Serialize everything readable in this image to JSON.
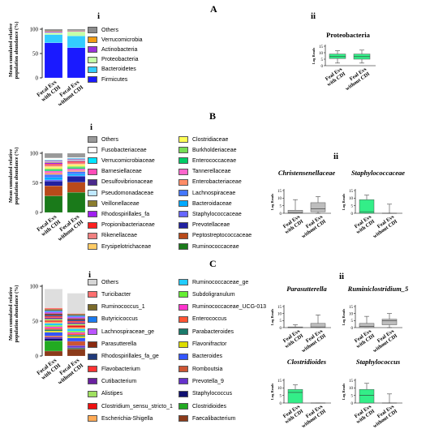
{
  "panels": {
    "A": {
      "letter": "A",
      "i_label": "i",
      "ii_label": "ii",
      "ylabel_lines": [
        "Mean cumulated relative",
        "population abundance (%)"
      ],
      "chart_title_ii": "Proteobacteria"
    },
    "B": {
      "letter": "B",
      "i_label": "i",
      "ii_label": "ii",
      "ylabel_lines": [
        "Mean cumulated relative",
        "population abundance (%)"
      ]
    },
    "C": {
      "letter": "C",
      "i_label": "i",
      "ii_label": "ii",
      "ylabel_lines": [
        "Mean cumulated relative",
        "population abundance (%)"
      ]
    }
  },
  "chart_data": [
    {
      "id": "A-i",
      "type": "bar",
      "stacked": true,
      "categories": [
        "Fecal Evs with CDI",
        "Fecal Evs without CDI"
      ],
      "ylim": [
        0,
        100
      ],
      "yticks": [
        0,
        50,
        100
      ],
      "legend": [
        "Others",
        "Verrucomicrobia",
        "Actinobacteria",
        "Proteobacteria",
        "Bacteroidetes",
        "Firmicutes"
      ],
      "colors": [
        "#8c8c8c",
        "#f39c12",
        "#9b30d9",
        "#c5ffa8",
        "#33ccff",
        "#1a1aff"
      ],
      "series": [
        {
          "name": "Firmicutes",
          "values": [
            72,
            62
          ]
        },
        {
          "name": "Bacteroidetes",
          "values": [
            17,
            24
          ]
        },
        {
          "name": "Proteobacteria",
          "values": [
            4,
            9
          ]
        },
        {
          "name": "Actinobacteria",
          "values": [
            2,
            1
          ]
        },
        {
          "name": "Verrucomicrobia",
          "values": [
            1,
            1
          ]
        },
        {
          "name": "Others",
          "values": [
            4,
            3
          ]
        }
      ]
    },
    {
      "id": "A-ii",
      "type": "box",
      "title": "Proteobacteria",
      "ylabel": "Log Reads",
      "ylim": [
        0,
        15
      ],
      "yticks": [
        0,
        5,
        10,
        15
      ],
      "categories": [
        "Feal Evs with CDI",
        "Feal Evs without CDI"
      ],
      "color": "#33ee88",
      "boxes": [
        {
          "min": 2,
          "q1": 5.5,
          "median": 7,
          "q3": 9,
          "max": 11.5
        },
        {
          "min": 2,
          "q1": 5,
          "median": 7,
          "q3": 9,
          "max": 12
        }
      ]
    },
    {
      "id": "B-i",
      "type": "bar",
      "stacked": true,
      "categories": [
        "Fecal Evs with CDI",
        "Fecal Evs without CDI"
      ],
      "ylim": [
        0,
        100
      ],
      "yticks": [
        0,
        50,
        100
      ],
      "legend": [
        "Others",
        "Fusobacteriaceae",
        "Verrucomicrobiaceae",
        "Barnesiellaceae",
        "Desulfovibrionaceae",
        "Pseudomonadaceae",
        "Veillonellaceae",
        "Rhodospirillales_fa",
        "Propionibacteriaceae",
        "Rikenellaceae",
        "Erysipelotrichaceae",
        "Clostridiaceae",
        "Burkholderiaceae",
        "Enterococcaceae",
        "Tannerellaceae",
        "Enterobacteriaceae",
        "Lachnospiraceae",
        "Bacteroidaceae",
        "Staphylococcaceae",
        "Prevotellaceae",
        "Peptostreptococcaceae",
        "Ruminococcaceae"
      ],
      "colors": [
        "#999999",
        "#ffffff",
        "#00e5ff",
        "#ff4db8",
        "#4b2a8c",
        "#bfe8ff",
        "#8b7d2e",
        "#a020f0",
        "#ff2020",
        "#f08080",
        "#ffcc66",
        "#ffff55",
        "#77dd55",
        "#00cc66",
        "#ff66cc",
        "#ff8c66",
        "#4477ff",
        "#00aaff",
        "#6666ff",
        "#2020a0",
        "#b84a1a",
        "#1a7a1a"
      ],
      "series": [
        {
          "name": "Ruminococcaceae",
          "values": [
            28,
            34
          ]
        },
        {
          "name": "Peptostreptococcaceae",
          "values": [
            17,
            17
          ]
        },
        {
          "name": "Prevotellaceae",
          "values": [
            8,
            10
          ]
        },
        {
          "name": "Staphylococcaceae",
          "values": [
            2,
            1
          ]
        },
        {
          "name": "Bacteroidaceae",
          "values": [
            4,
            3
          ]
        },
        {
          "name": "Lachnospiraceae",
          "values": [
            5,
            4
          ]
        },
        {
          "name": "Enterobacteriaceae",
          "values": [
            3,
            2
          ]
        },
        {
          "name": "Tannerellaceae",
          "values": [
            3,
            3
          ]
        },
        {
          "name": "Enterococcaceae",
          "values": [
            2,
            2
          ]
        },
        {
          "name": "Burkholderiaceae",
          "values": [
            2,
            2
          ]
        },
        {
          "name": "Clostridiaceae",
          "values": [
            2,
            2
          ]
        },
        {
          "name": "Erysipelotrichaceae",
          "values": [
            2,
            2
          ]
        },
        {
          "name": "Rikenellaceae",
          "values": [
            2,
            2
          ]
        },
        {
          "name": "Propionibacteriaceae",
          "values": [
            2,
            2
          ]
        },
        {
          "name": "Rhodospirillales_fa",
          "values": [
            2,
            1
          ]
        },
        {
          "name": "Veillonellaceae",
          "values": [
            1,
            1
          ]
        },
        {
          "name": "Pseudomonadaceae",
          "values": [
            1,
            1
          ]
        },
        {
          "name": "Desulfovibrionaceae",
          "values": [
            1,
            1
          ]
        },
        {
          "name": "Barnesiellaceae",
          "values": [
            1,
            1
          ]
        },
        {
          "name": "Verrucomicrobiaceae",
          "values": [
            1,
            1
          ]
        },
        {
          "name": "Fusobacteriaceae",
          "values": [
            3,
            1
          ]
        },
        {
          "name": "Others",
          "values": [
            8,
            7
          ]
        }
      ]
    },
    {
      "id": "B-ii-1",
      "type": "box",
      "title": "Christensenellaceae",
      "ylabel": "Log Reads",
      "ylim": [
        0,
        15
      ],
      "yticks": [
        0,
        5,
        10,
        15
      ],
      "categories": [
        "Feal Evs with CDI",
        "Feal Evs without CDI"
      ],
      "color": "#bdbdbd",
      "boxes": [
        {
          "min": 0,
          "q1": 0,
          "median": 0.5,
          "q3": 2,
          "max": 9
        },
        {
          "min": 0,
          "q1": 1,
          "median": 3,
          "q3": 7,
          "max": 11
        }
      ]
    },
    {
      "id": "B-ii-2",
      "type": "box",
      "title": "Staphylococcaceae",
      "ylabel": "Log Reads",
      "ylim": [
        0,
        15
      ],
      "yticks": [
        0,
        5,
        10,
        15
      ],
      "categories": [
        "Feal Evs with CDI",
        "Feal Evs without CDI"
      ],
      "color": "#33ee88",
      "boxes": [
        {
          "min": 0,
          "q1": 0,
          "median": 1,
          "q3": 9,
          "max": 12
        },
        {
          "min": 0,
          "q1": 0,
          "median": 0,
          "q3": 0,
          "max": 6
        }
      ]
    },
    {
      "id": "C-i",
      "type": "bar",
      "stacked": true,
      "categories": [
        "Fecal Evs with CDI",
        "Fecal Evs without CDI"
      ],
      "ylim": [
        0,
        100
      ],
      "yticks": [
        0,
        50,
        100
      ],
      "legend": [
        "Others",
        "Turicibacter",
        "Ruminococcus_1",
        "Butyricicoccus",
        "Lachnospiraceae_ge",
        "Parasutterella",
        "Rhodospirillales_fa_ge",
        "Flavobacterium",
        "Cutibacterium",
        "Alistipes",
        "Clostridium_sensu_stricto_1",
        "Escherichia-Shigella",
        "Ruminococcaceae_ge",
        "Subdoligranulum",
        "Ruminococcaceae_UCG-013",
        "Enterococcus",
        "Parabacteroides",
        "Flavonifractor",
        "Bacteroides",
        "Romboutsia",
        "Prevotella_9",
        "Staphylococcus",
        "Clostridioides",
        "Faecalibacterium"
      ],
      "colors": [
        "#d6d6d6",
        "#ff7070",
        "#7a6a2a",
        "#1a7af0",
        "#bb55ff",
        "#8b2a10",
        "#203a7a",
        "#ff3333",
        "#6a22a0",
        "#a0e060",
        "#ee1111",
        "#ffaa55",
        "#22ccff",
        "#66ee33",
        "#ff33cc",
        "#ff5533",
        "#1a7a6a",
        "#dddd00",
        "#3355ff",
        "#cc5533",
        "#6633cc",
        "#101070",
        "#22aa22",
        "#8b3a1a"
      ],
      "series": [
        {
          "name": "Faecalibacterium",
          "values": [
            7,
            10
          ]
        },
        {
          "name": "Clostridioides",
          "values": [
            15,
            1
          ]
        },
        {
          "name": "Staphylococcus",
          "values": [
            3,
            1
          ]
        },
        {
          "name": "Prevotella_9",
          "values": [
            2,
            3
          ]
        },
        {
          "name": "Romboutsia",
          "values": [
            2,
            6
          ]
        },
        {
          "name": "Bacteroides",
          "values": [
            5,
            5
          ]
        },
        {
          "name": "Flavonifractor",
          "values": [
            2,
            2
          ]
        },
        {
          "name": "Parabacteroides",
          "values": [
            2,
            2
          ]
        },
        {
          "name": "Enterococcus",
          "values": [
            2,
            2
          ]
        },
        {
          "name": "Ruminococcaceae_UCG-013",
          "values": [
            2,
            2
          ]
        },
        {
          "name": "Subdoligranulum",
          "values": [
            2,
            2
          ]
        },
        {
          "name": "Ruminococcaceae_ge",
          "values": [
            3,
            3
          ]
        },
        {
          "name": "Escherichia-Shigella",
          "values": [
            2,
            2
          ]
        },
        {
          "name": "Clostridium_sensu_stricto_1",
          "values": [
            2,
            3
          ]
        },
        {
          "name": "Alistipes",
          "values": [
            2,
            2
          ]
        },
        {
          "name": "Cutibacterium",
          "values": [
            2,
            2
          ]
        },
        {
          "name": "Flavobacterium",
          "values": [
            2,
            2
          ]
        },
        {
          "name": "Rhodospirillales_fa_ge",
          "values": [
            2,
            2
          ]
        },
        {
          "name": "Parasutterella",
          "values": [
            2,
            2
          ]
        },
        {
          "name": "Lachnospiraceae_ge",
          "values": [
            2,
            2
          ]
        },
        {
          "name": "Butyricicoccus",
          "values": [
            2,
            2
          ]
        },
        {
          "name": "Ruminococcus_1",
          "values": [
            2,
            2
          ]
        },
        {
          "name": "Turicibacter",
          "values": [
            2,
            1
          ]
        },
        {
          "name": "Others",
          "values": [
            27,
            29
          ]
        }
      ]
    },
    {
      "id": "C-ii-1",
      "type": "box",
      "title": "Parasutterella",
      "ylabel": "Log Reads",
      "ylim": [
        0,
        15
      ],
      "yticks": [
        0,
        5,
        10,
        15
      ],
      "categories": [
        "Feal Evs with CDI",
        "Feal Evs without CDI"
      ],
      "color": "#bdbdbd",
      "boxes": [
        {
          "min": 0,
          "q1": 0,
          "median": 0,
          "q3": 0.5,
          "max": 2
        },
        {
          "min": 0,
          "q1": 0,
          "median": 0.5,
          "q3": 3,
          "max": 9
        }
      ]
    },
    {
      "id": "C-ii-2",
      "type": "box",
      "title": "Ruminiclostridium_5",
      "ylabel": "Log Reads",
      "ylim": [
        0,
        15
      ],
      "yticks": [
        0,
        5,
        10,
        15
      ],
      "categories": [
        "Feal Evs with CDI",
        "Feal Evs without CDI"
      ],
      "color": "#bdbdbd",
      "boxes": [
        {
          "min": 0,
          "q1": 0,
          "median": 1,
          "q3": 3,
          "max": 8
        },
        {
          "min": 0,
          "q1": 2,
          "median": 5,
          "q3": 6,
          "max": 10
        }
      ]
    },
    {
      "id": "C-ii-3",
      "type": "box",
      "title": "Clostridioides",
      "ylabel": "Log Reads",
      "ylim": [
        0,
        15
      ],
      "yticks": [
        0,
        5,
        10,
        15
      ],
      "categories": [
        "Feal Evs with CDI",
        "Feal Evs without CDI"
      ],
      "color": "#33ee88",
      "boxes": [
        {
          "min": 0,
          "q1": 0,
          "median": 7,
          "q3": 9,
          "max": 12
        },
        {
          "min": 0,
          "q1": 0,
          "median": 0,
          "q3": 0,
          "max": 0
        }
      ]
    },
    {
      "id": "C-ii-4",
      "type": "box",
      "title": "Staphylococcus",
      "ylabel": "Log Reads",
      "ylim": [
        0,
        15
      ],
      "yticks": [
        0,
        5,
        10,
        15
      ],
      "categories": [
        "Feal Evs with CDI",
        "Feal Evs without CDI"
      ],
      "color": "#33ee88",
      "boxes": [
        {
          "min": 0,
          "q1": 0,
          "median": 5,
          "q3": 9,
          "max": 13
        },
        {
          "min": 0,
          "q1": 0,
          "median": 0,
          "q3": 0,
          "max": 6
        }
      ]
    }
  ]
}
